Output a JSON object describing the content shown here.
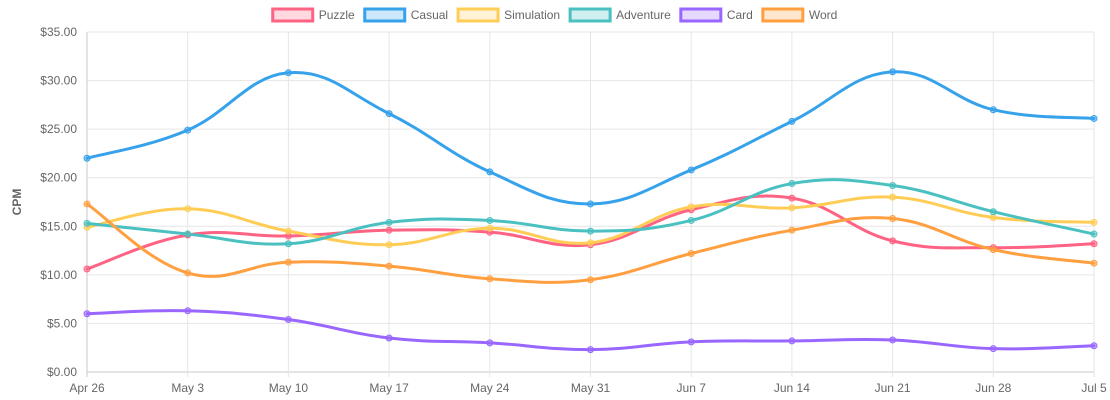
{
  "chart_data": {
    "type": "line",
    "categories": [
      "Apr 26",
      "May 3",
      "May 10",
      "May 17",
      "May 24",
      "May 31",
      "Jun 7",
      "Jun 14",
      "Jun 21",
      "Jun 28",
      "Jul 5"
    ],
    "ylabel": "CPM",
    "xlabel": "",
    "ylim": [
      0,
      35
    ],
    "yticks": [
      0,
      5,
      10,
      15,
      20,
      25,
      30,
      35
    ],
    "ytick_labels": [
      "$0.00",
      "$5.00",
      "$10.00",
      "$15.00",
      "$20.00",
      "$25.00",
      "$30.00",
      "$35.00"
    ],
    "legend_position": "top-center",
    "grid": true,
    "series": [
      {
        "name": "Puzzle",
        "color": "#ff6384",
        "values": [
          10.6,
          14.1,
          14.0,
          14.6,
          14.4,
          13.1,
          16.7,
          17.9,
          13.5,
          12.8,
          13.2
        ]
      },
      {
        "name": "Casual",
        "color": "#36a2eb",
        "values": [
          22.0,
          24.9,
          30.8,
          26.6,
          20.6,
          17.3,
          20.8,
          25.8,
          30.9,
          27.0,
          26.1
        ]
      },
      {
        "name": "Simulation",
        "color": "#ffcd56",
        "values": [
          14.9,
          16.8,
          14.5,
          13.1,
          14.8,
          13.3,
          17.0,
          16.9,
          18.0,
          15.9,
          15.4
        ]
      },
      {
        "name": "Adventure",
        "color": "#4bc0c0",
        "values": [
          15.3,
          14.2,
          13.2,
          15.4,
          15.6,
          14.5,
          15.6,
          19.4,
          19.2,
          16.5,
          14.2
        ]
      },
      {
        "name": "Card",
        "color": "#9966ff",
        "values": [
          6.0,
          6.3,
          5.4,
          3.5,
          3.0,
          2.3,
          3.1,
          3.2,
          3.3,
          2.4,
          2.7
        ]
      },
      {
        "name": "Word",
        "color": "#ff9f40",
        "values": [
          17.3,
          10.2,
          11.3,
          10.9,
          9.6,
          9.5,
          12.2,
          14.6,
          15.8,
          12.6,
          11.2
        ]
      }
    ]
  }
}
